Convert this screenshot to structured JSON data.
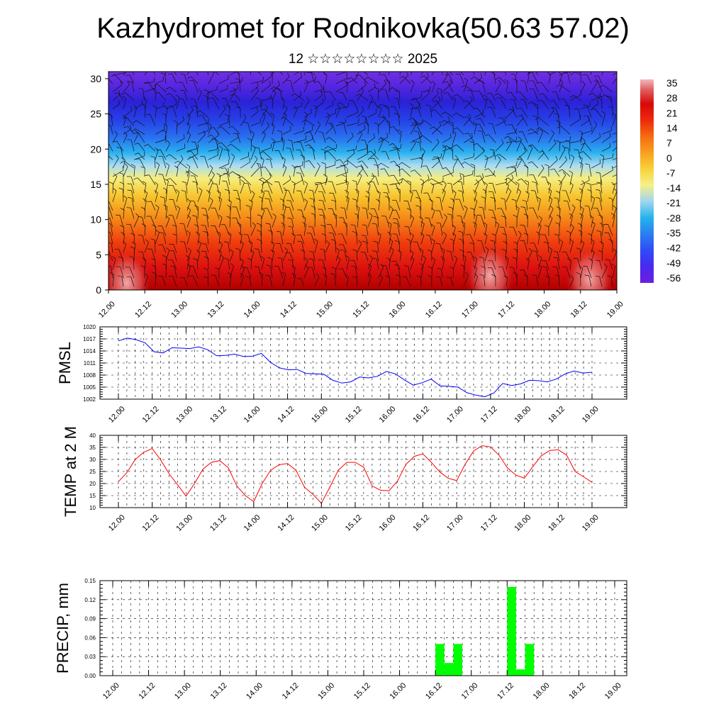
{
  "header": {
    "title": "Kazhydromet for Rodnikovka(50.63 57.02)",
    "subtitle": "12 ☆☆☆☆☆☆☆☆ 2025"
  },
  "colors": {
    "pmsl_line": "#0000ff",
    "temp_line": "#ff0000",
    "precip_bar": "#00ff00",
    "grid": "#000000"
  },
  "chart_data": [
    {
      "type": "heatmap",
      "title": "",
      "xlabel": "",
      "ylabel": "",
      "x_ticks": [
        "12.00",
        "12.12",
        "13.00",
        "13.12",
        "14.00",
        "14.12",
        "15.00",
        "15.12",
        "16.00",
        "16.12",
        "17.00",
        "17.12",
        "18.00",
        "18.12",
        "19.00"
      ],
      "y_ticks": [
        0,
        5,
        10,
        15,
        20,
        25,
        30
      ],
      "ylim": [
        0,
        31
      ],
      "overlay": "wind barbs",
      "colorbar_labels": [
        "35",
        "28",
        "21",
        "14",
        "7",
        "0",
        "-7",
        "-14",
        "-21",
        "-28",
        "-35",
        "-42",
        "-49",
        "-56"
      ],
      "colorbar_range": [
        -60,
        38
      ],
      "temperature_profile": [
        {
          "level": 0,
          "value": 30
        },
        {
          "level": 3,
          "value": 25
        },
        {
          "level": 7,
          "value": 18
        },
        {
          "level": 11,
          "value": 8
        },
        {
          "level": 14,
          "value": 0
        },
        {
          "level": 16,
          "value": -7
        },
        {
          "level": 17.5,
          "value": -15
        },
        {
          "level": 19,
          "value": -25
        },
        {
          "level": 21,
          "value": -35
        },
        {
          "level": 23,
          "value": -45
        },
        {
          "level": 25,
          "value": -54
        },
        {
          "level": 28,
          "value": -58
        },
        {
          "level": 31,
          "value": -56
        }
      ],
      "warm_spots": [
        {
          "time": "12.06",
          "level": 1,
          "value": 36
        },
        {
          "time": "17.06",
          "level": 2,
          "value": 37
        },
        {
          "time": "18.15",
          "level": 1.5,
          "value": 35
        }
      ]
    },
    {
      "type": "line",
      "ylabel": "PMSL",
      "x_ticks": [
        "12.00",
        "12.12",
        "13.00",
        "13.12",
        "14.00",
        "14.12",
        "15.00",
        "15.12",
        "16.00",
        "16.12",
        "17.00",
        "17.12",
        "18.00",
        "18.12",
        "19.00"
      ],
      "y_ticks": [
        "1002",
        "1005",
        "1008",
        "1011",
        "1014",
        "1017",
        "1020"
      ],
      "ylim": [
        1002,
        1020
      ],
      "grid": true,
      "series": [
        {
          "values": [
            1016.5,
            1017.2,
            1016.8,
            1016.0,
            1013.8,
            1013.5,
            1014.8,
            1014.7,
            1014.6,
            1015.0,
            1014.3,
            1012.8,
            1012.9,
            1013.2,
            1012.6,
            1012.7,
            1013.4,
            1011.2,
            1009.8,
            1009.3,
            1009.4,
            1008.4,
            1008.3,
            1008.2,
            1006.7,
            1006.0,
            1006.3,
            1007.5,
            1007.3,
            1007.7,
            1008.9,
            1008.3,
            1006.8,
            1005.5,
            1006.1,
            1007.0,
            1005.3,
            1005.2,
            1005.0,
            1003.6,
            1003.0,
            1002.6,
            1003.5,
            1005.9,
            1005.4,
            1005.8,
            1006.7,
            1006.6,
            1006.3,
            1007.0,
            1008.3,
            1009.0,
            1008.5,
            1008.7
          ]
        }
      ]
    },
    {
      "type": "line",
      "ylabel": "TEMP at 2 M",
      "x_ticks": [
        "12.00",
        "12.12",
        "13.00",
        "13.12",
        "14.00",
        "14.12",
        "15.00",
        "15.12",
        "16.00",
        "16.12",
        "17.00",
        "17.12",
        "18.00",
        "18.12",
        "19.00"
      ],
      "y_ticks": [
        "10",
        "15",
        "20",
        "25",
        "30",
        "35",
        "40"
      ],
      "ylim": [
        10,
        40
      ],
      "grid": true,
      "series": [
        {
          "values": [
            20.8,
            24.5,
            30.0,
            33.0,
            34.5,
            29.8,
            24.0,
            19.5,
            14.8,
            20.0,
            26.0,
            28.8,
            29.5,
            26.5,
            19.0,
            15.0,
            12.5,
            20.0,
            25.5,
            27.8,
            28.3,
            25.5,
            18.5,
            15.5,
            11.8,
            18.5,
            25.5,
            28.8,
            28.8,
            26.8,
            19.0,
            17.2,
            17.0,
            21.0,
            28.0,
            31.3,
            32.3,
            28.8,
            24.8,
            22.2,
            21.2,
            28.0,
            33.5,
            35.7,
            35.2,
            31.8,
            26.5,
            23.5,
            22.2,
            27.0,
            31.5,
            33.7,
            34.0,
            31.8,
            25.0,
            22.8,
            20.5
          ]
        }
      ]
    },
    {
      "type": "bar",
      "ylabel": "PRECIP, mm",
      "x_ticks": [
        "12.00",
        "12.12",
        "13.00",
        "13.12",
        "14.00",
        "14.12",
        "15.00",
        "15.12",
        "16.00",
        "16.12",
        "17.00",
        "17.12",
        "18.00",
        "18.12",
        "19.00"
      ],
      "y_ticks": [
        "0.00",
        "0.03",
        "0.06",
        "0.09",
        "0.12",
        "0.15"
      ],
      "ylim": [
        0,
        0.15
      ],
      "grid": true,
      "values": [
        0,
        0,
        0,
        0,
        0,
        0,
        0,
        0,
        0,
        0,
        0,
        0,
        0,
        0,
        0,
        0,
        0,
        0,
        0,
        0,
        0,
        0,
        0,
        0,
        0,
        0,
        0,
        0,
        0,
        0,
        0,
        0,
        0,
        0,
        0,
        0,
        0.05,
        0.02,
        0.05,
        0,
        0,
        0,
        0,
        0,
        0.14,
        0.01,
        0.05,
        0,
        0,
        0,
        0,
        0,
        0,
        0,
        0,
        0
      ]
    }
  ]
}
